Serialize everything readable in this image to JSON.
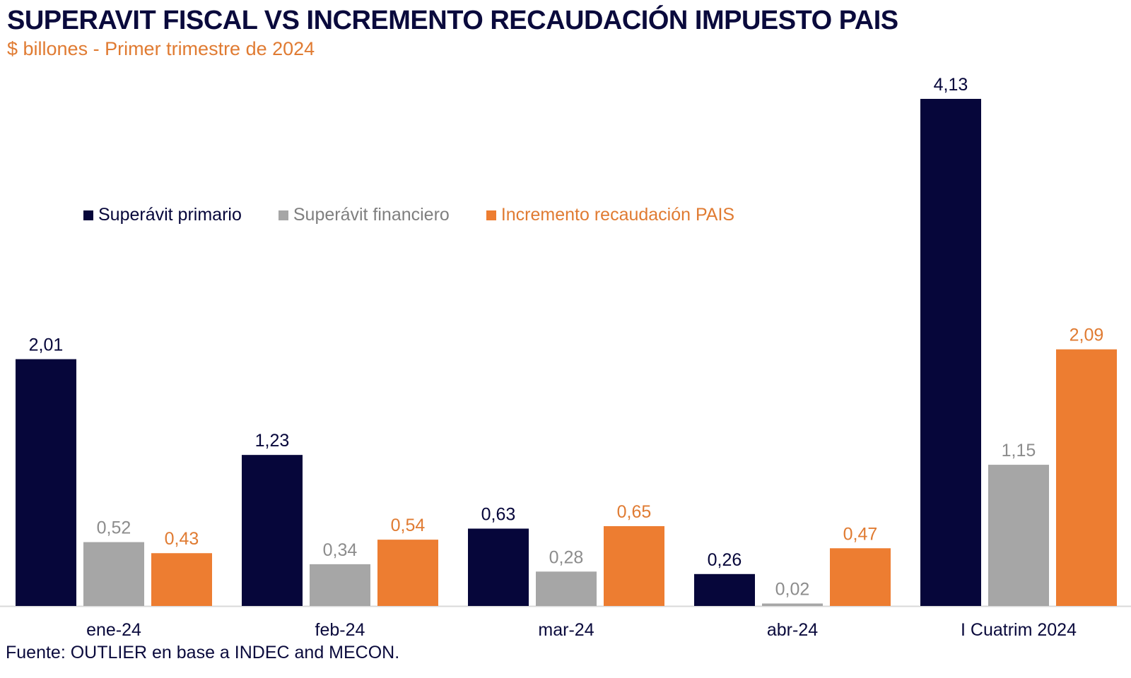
{
  "chart_data": {
    "type": "bar",
    "title": "SUPERAVIT FISCAL VS INCREMENTO RECAUDACIÓN IMPUESTO PAIS",
    "subtitle": "$ billones  - Primer trimestre de 2024",
    "xlabel": "",
    "ylabel": "",
    "ylim": [
      0,
      4.13
    ],
    "grid": false,
    "legend_position": "middle-left",
    "categories": [
      "ene-24",
      "feb-24",
      "mar-24",
      "abr-24",
      "I Cuatrim 2024"
    ],
    "series": [
      {
        "name": "Superávit primario",
        "color": "#06063a",
        "label_color": "#06063a",
        "values": [
          2.01,
          1.23,
          0.63,
          0.26,
          4.13
        ],
        "labels": [
          "2,01",
          "1,23",
          "0,63",
          "0,26",
          "4,13"
        ]
      },
      {
        "name": "Superávit financiero",
        "color": "#a6a6a6",
        "label_color": "#8c8c8c",
        "values": [
          0.52,
          0.34,
          0.28,
          0.02,
          1.15
        ],
        "labels": [
          "0,52",
          "0,34",
          "0,28",
          "0,02",
          "1,15"
        ]
      },
      {
        "name": "Incremento recaudación PAIS",
        "color": "#ed7d31",
        "label_color": "#e07b32",
        "values": [
          0.43,
          0.54,
          0.65,
          0.47,
          2.09
        ],
        "labels": [
          "0,43",
          "0,54",
          "0,65",
          "0,47",
          "2,09"
        ]
      }
    ],
    "source": "Fuente: OUTLIER en base a INDEC and MECON."
  }
}
